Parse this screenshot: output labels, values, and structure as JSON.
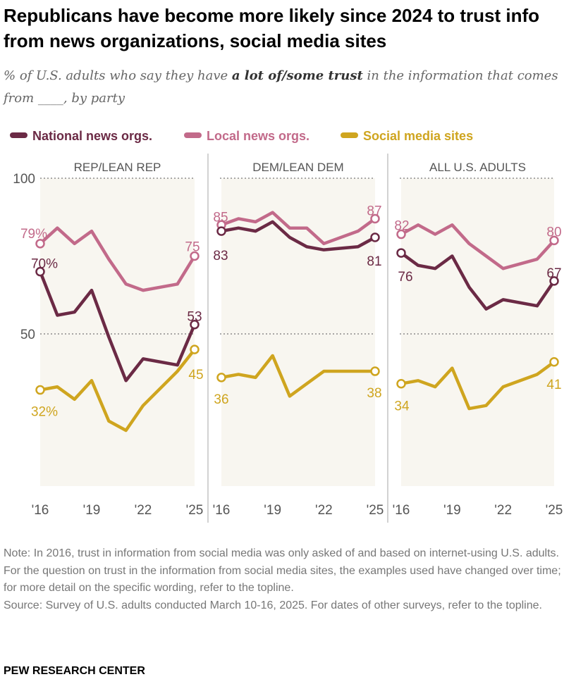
{
  "title": "Republicans have become more likely since 2024 to trust info from news organizations, social media sites",
  "subtitle": {
    "before": "% of U.S. adults who say they have ",
    "bold": "a lot of/some trust",
    "after": " in the information that comes from ____, by party"
  },
  "notes": {
    "note": "Note: In 2016, trust in information from social media was only asked of and based on internet-using U.S. adults. For the question on trust in the information from social media sites, the examples used have changed over time; for more detail on the specific wording, refer to the topline.",
    "source": "Source: Survey of U.S. adults conducted March 10-16, 2025. For dates of other surveys, refer to the topline."
  },
  "footer": "PEW RESEARCH CENTER",
  "chart_data": {
    "type": "line",
    "ylim": [
      0,
      100
    ],
    "yticks": [
      "100",
      "50"
    ],
    "yticks_values": [
      100,
      50
    ],
    "x": [
      2016,
      2017,
      2018,
      2019,
      2020,
      2021,
      2022,
      2024,
      2025
    ],
    "xtick_labels": [
      "'16",
      "'19",
      "'22",
      "'25"
    ],
    "xtick_values": [
      2016,
      2019,
      2022,
      2025
    ],
    "legend": [
      {
        "name": "National news orgs.",
        "color": "#6b2a45"
      },
      {
        "name": "Local news orgs.",
        "color": "#c26a8a"
      },
      {
        "name": "Social media sites",
        "color": "#cfa51f"
      }
    ],
    "panels": [
      {
        "title": "REP/LEAN REP",
        "series": [
          {
            "name": "Local news orgs.",
            "values": [
              79,
              84,
              79,
              83,
              74,
              66,
              64,
              66,
              75
            ],
            "labels": [
              "79%",
              "75"
            ]
          },
          {
            "name": "National news orgs.",
            "values": [
              70,
              56,
              57,
              64,
              49,
              35,
              42,
              40,
              53
            ],
            "labels": [
              "70%",
              "53"
            ]
          },
          {
            "name": "Social media sites",
            "values": [
              32,
              33,
              29,
              35,
              22,
              19,
              27,
              38,
              45
            ],
            "labels": [
              "32%",
              "45"
            ]
          }
        ]
      },
      {
        "title": "DEM/LEAN DEM",
        "series": [
          {
            "name": "Local news orgs.",
            "values": [
              85,
              87,
              86,
              89,
              84,
              84,
              79,
              83,
              87
            ],
            "labels": [
              "85",
              "87"
            ]
          },
          {
            "name": "National news orgs.",
            "values": [
              83,
              84,
              83,
              86,
              81,
              78,
              77,
              78,
              81
            ],
            "labels": [
              "83",
              "81"
            ]
          },
          {
            "name": "Social media sites",
            "values": [
              36,
              37,
              36,
              43,
              30,
              34,
              38,
              38,
              38
            ],
            "labels": [
              "36",
              "38"
            ]
          }
        ]
      },
      {
        "title": "ALL U.S. ADULTS",
        "series": [
          {
            "name": "Local news orgs.",
            "values": [
              82,
              85,
              82,
              85,
              79,
              75,
              71,
              74,
              80
            ],
            "labels": [
              "82",
              "80"
            ]
          },
          {
            "name": "National news orgs.",
            "values": [
              76,
              72,
              71,
              75,
              65,
              58,
              61,
              59,
              67
            ],
            "labels": [
              "76",
              "67"
            ]
          },
          {
            "name": "Social media sites",
            "values": [
              34,
              35,
              33,
              39,
              26,
              27,
              33,
              37,
              41
            ],
            "labels": [
              "34",
              "41"
            ]
          }
        ]
      }
    ]
  }
}
